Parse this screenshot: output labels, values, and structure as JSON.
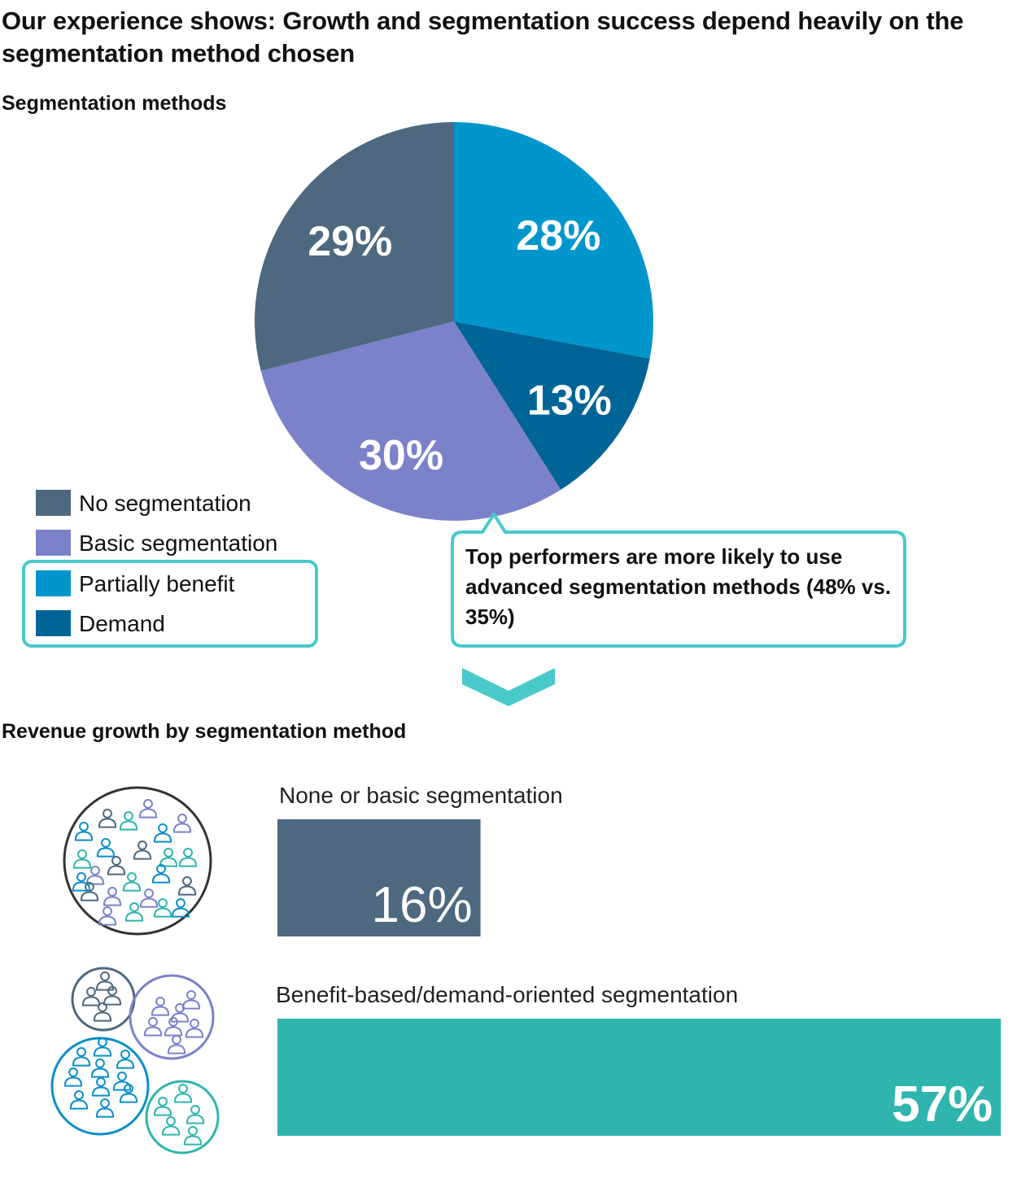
{
  "headline": "Our experience shows: Growth and segmentation success depend heavily on the segmentation method chosen",
  "pie_section_title": "Segmentation methods",
  "bar_section_title": "Revenue growth by segmentation method",
  "callout": {
    "text": "Top performers are more likely to use advanced segmentation methods (48% vs. 35%)",
    "border_color": "#49c9c9"
  },
  "legend": [
    {
      "label": "No segmentation",
      "color": "#4d687f"
    },
    {
      "label": "Basic segmentation",
      "color": "#7b82c9"
    },
    {
      "label": "Partially benefit",
      "color": "#0096cc"
    },
    {
      "label": "Demand",
      "color": "#006496"
    }
  ],
  "icons": [
    "people-crowd-icon",
    "people-clusters-icon",
    "chevron-down-icon"
  ],
  "chart_data": [
    {
      "type": "pie",
      "title": "Segmentation methods",
      "slices": [
        {
          "name": "Partially benefit",
          "value": 28,
          "label": "28%",
          "color": "#0096cc"
        },
        {
          "name": "Demand",
          "value": 13,
          "label": "13%",
          "color": "#006496"
        },
        {
          "name": "Basic segmentation",
          "value": 30,
          "label": "30%",
          "color": "#7b82c9"
        },
        {
          "name": "No segmentation",
          "value": 29,
          "label": "29%",
          "color": "#4d687f"
        }
      ]
    },
    {
      "type": "bar",
      "title": "Revenue growth by segmentation method",
      "categories": [
        "None or basic segmentation",
        "Benefit-based/demand-oriented segmentation"
      ],
      "values": [
        16,
        57
      ],
      "labels": [
        "16%",
        "57%"
      ],
      "colors": [
        "#4d687f",
        "#2fb5ae"
      ]
    }
  ]
}
